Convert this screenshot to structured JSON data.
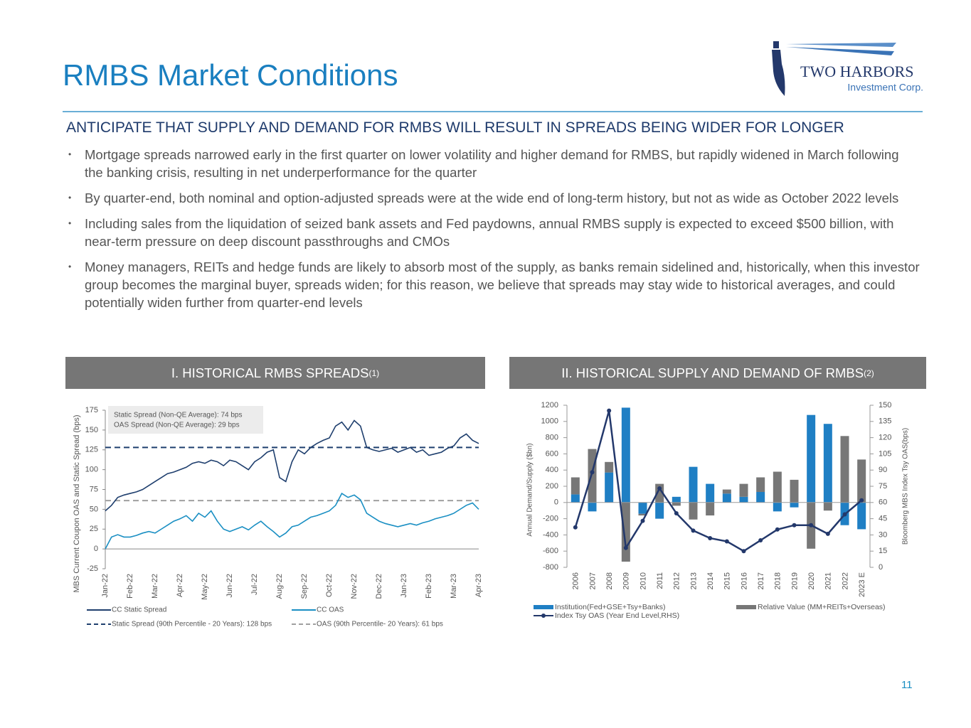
{
  "header": {
    "title": "RMBS Market Conditions",
    "logo_name": "TWO HARBORS",
    "logo_sub": "Investment Corp."
  },
  "subtitle": "ANTICIPATE THAT SUPPLY AND DEMAND FOR RMBS WILL RESULT IN SPREADS BEING WIDER FOR LONGER",
  "bullets": [
    "Mortgage spreads narrowed early in the first quarter on lower volatility and higher demand for RMBS, but rapidly widened in March following the banking crisis, resulting in net underperformance for the quarter",
    "By quarter-end, both nominal and option-adjusted spreads were at the wide end of long-term history, but not as wide as October 2022 levels",
    "Including sales from the liquidation of seized bank assets and Fed paydowns, annual RMBS supply is expected to exceed $500 billion, with near-term pressure on deep discount passthroughs and CMOs",
    "Money managers, REITs and hedge funds are likely to absorb most of the supply, as banks remain sidelined and, historically, when this investor group becomes the marginal buyer, spreads widen; for this reason, we believe that spreads may stay wide to historical averages, and could potentially widen further from quarter-end levels"
  ],
  "sections": [
    {
      "title": "I. HISTORICAL RMBS SPREADS",
      "note": "(1)"
    },
    {
      "title": "II. HISTORICAL SUPPLY AND DEMAND OF RMBS",
      "note": "(2)"
    }
  ],
  "page_number": "11",
  "chart_data": [
    {
      "type": "line",
      "y_label": "MBS Current Coupon OAS and Static Spread (bps)",
      "annotations": [
        "Static Spread (Non-QE Average): 74 bps",
        "OAS Spread (Non-QE Average): 29 bps"
      ],
      "categories": [
        "Jan-22",
        null,
        null,
        null,
        "Feb-22",
        null,
        null,
        null,
        "Mar-22",
        null,
        null,
        null,
        "Apr-22",
        null,
        null,
        null,
        "May-22",
        null,
        null,
        null,
        "Jun-22",
        null,
        null,
        null,
        "Jul-22",
        null,
        null,
        null,
        "Aug-22",
        null,
        null,
        null,
        "Sep-22",
        null,
        null,
        null,
        "Oct-22",
        null,
        null,
        null,
        "Nov-22",
        null,
        null,
        null,
        "Dec-22",
        null,
        null,
        null,
        "Jan-23",
        null,
        null,
        null,
        "Feb-23",
        null,
        null,
        null,
        "Mar-23",
        null,
        null,
        null,
        "Apr-23"
      ],
      "series": [
        {
          "name": "CC Static Spread",
          "color": "#1f3f6e",
          "values": [
            48,
            55,
            65,
            68,
            70,
            72,
            75,
            80,
            85,
            90,
            95,
            97,
            100,
            103,
            108,
            110,
            108,
            112,
            110,
            105,
            112,
            110,
            105,
            100,
            110,
            115,
            122,
            125,
            90,
            85,
            110,
            125,
            120,
            128,
            133,
            137,
            140,
            155,
            160,
            150,
            162,
            155,
            128,
            125,
            123,
            125,
            127,
            122,
            125,
            128,
            122,
            125,
            118,
            120,
            122,
            127,
            130,
            140,
            145,
            137,
            133
          ]
        },
        {
          "name": "CC OAS",
          "color": "#1a8fc3",
          "values": [
            0,
            15,
            18,
            15,
            15,
            17,
            20,
            22,
            20,
            25,
            30,
            35,
            38,
            42,
            35,
            45,
            40,
            48,
            35,
            25,
            22,
            25,
            28,
            24,
            30,
            35,
            28,
            22,
            15,
            20,
            28,
            30,
            35,
            40,
            42,
            45,
            48,
            55,
            70,
            65,
            68,
            62,
            45,
            40,
            35,
            32,
            30,
            28,
            30,
            32,
            30,
            33,
            35,
            38,
            40,
            42,
            45,
            50,
            55,
            58,
            50
          ]
        }
      ],
      "hlines": [
        {
          "name": "Static Spread (90th Percentile - 20 Years): 128 bps",
          "value": 128,
          "color": "#1f3f6e"
        },
        {
          "name": "OAS (90th Percentile- 20 Years): 61 bps",
          "value": 61,
          "color": "#a0a0a0"
        }
      ],
      "ylim": [
        -25,
        175
      ],
      "yticks": [
        -25,
        0,
        25,
        50,
        75,
        100,
        125,
        150,
        175
      ]
    },
    {
      "type": "bar",
      "y_label": "Annual Demand/Supply ($bn)",
      "y2_label": "Bloomberg MBS Index Tsy OAS(bps)",
      "categories": [
        "2006",
        "2007",
        "2008",
        "2009",
        "2010",
        "2011",
        "2012",
        "2013",
        "2014",
        "2015",
        "2016",
        "2017",
        "2018",
        "2019",
        "2020",
        "2021",
        "2022",
        "2023 E"
      ],
      "series": [
        {
          "name": "Institution(Fed+GSE+Tsy+Banks)",
          "color": "#1f7fc4",
          "values": [
            100,
            -110,
            370,
            1170,
            -140,
            -200,
            70,
            440,
            230,
            110,
            70,
            130,
            -110,
            -60,
            1080,
            970,
            -280,
            -330
          ]
        },
        {
          "name": "Relative Value (MM+REITs+Overseas)",
          "color": "#777777",
          "values": [
            210,
            660,
            130,
            -730,
            -20,
            230,
            -40,
            -210,
            -160,
            50,
            160,
            180,
            380,
            280,
            -570,
            -100,
            820,
            530
          ]
        },
        {
          "name": "Index Tsy OAS (Year End Level,RHS)",
          "color": "#23386b",
          "axis": "y2",
          "values": [
            37,
            88,
            145,
            18,
            43,
            73,
            50,
            34,
            27,
            24,
            15,
            25,
            35,
            39,
            39,
            31,
            49,
            62
          ]
        }
      ],
      "ylim": [
        -800,
        1200
      ],
      "yticks": [
        -800,
        -600,
        -400,
        -200,
        0,
        200,
        400,
        600,
        800,
        1000,
        1200
      ],
      "y2lim": [
        0,
        150
      ],
      "y2ticks": [
        0,
        15,
        30,
        45,
        60,
        75,
        90,
        105,
        120,
        135,
        150
      ]
    }
  ]
}
